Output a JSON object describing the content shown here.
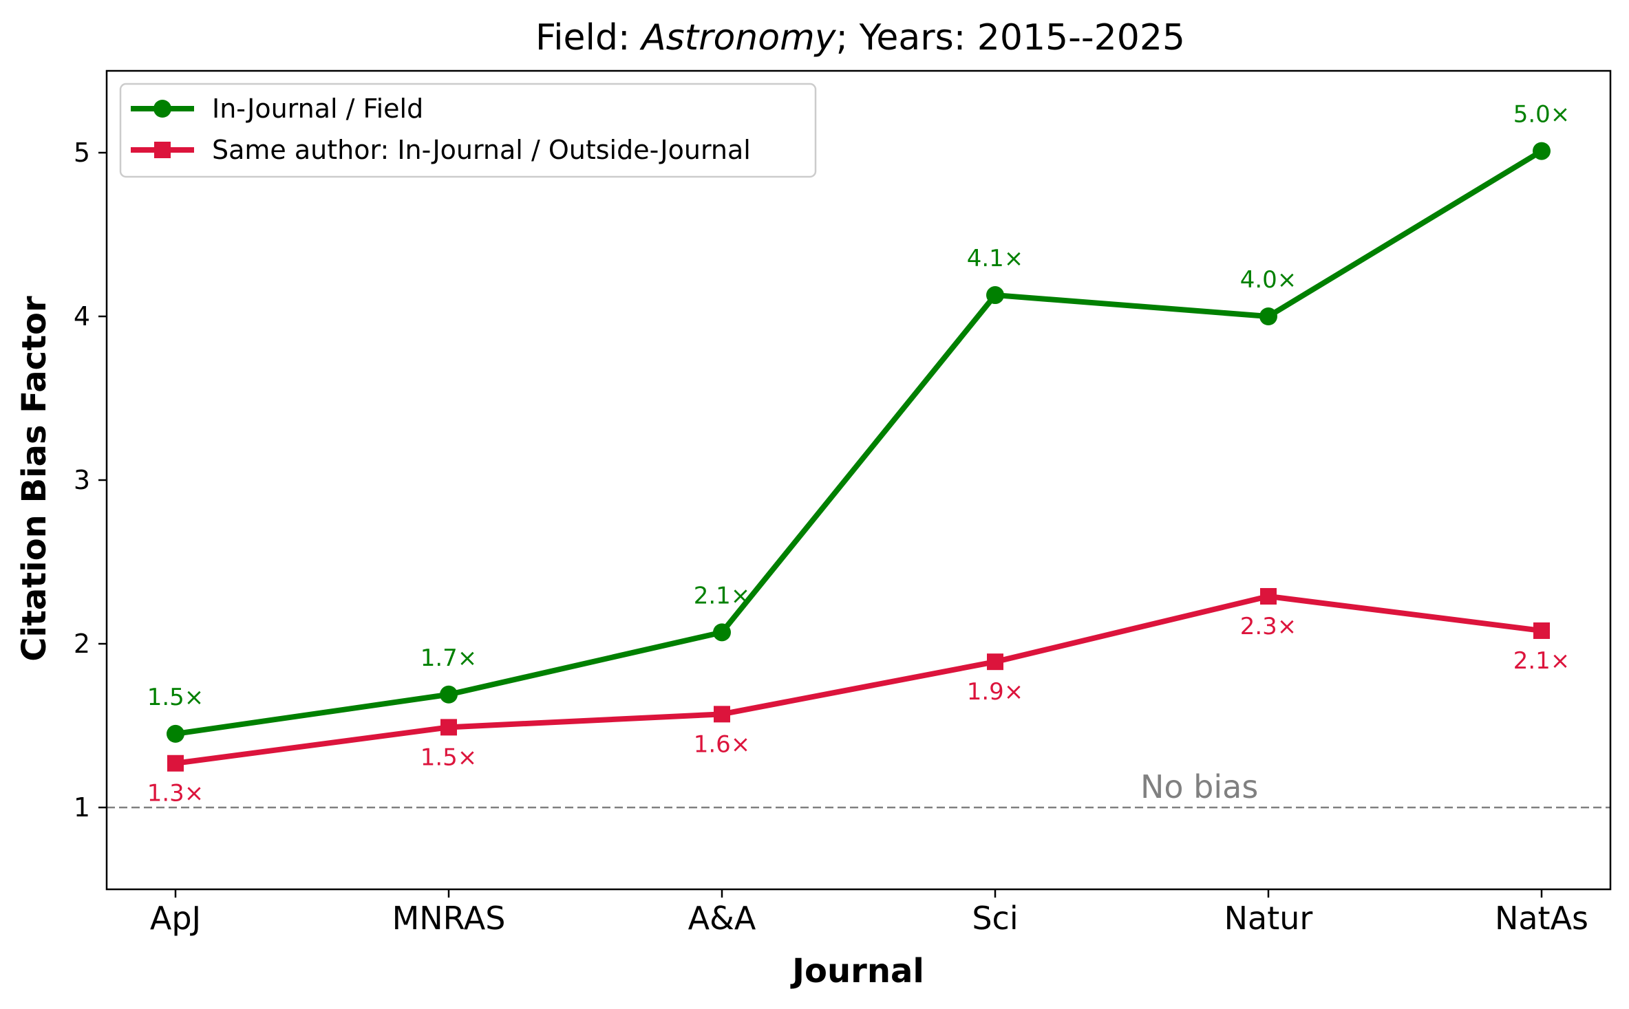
{
  "chart_data": {
    "type": "line",
    "title": {
      "prefix": "Field: ",
      "field": "Astronomy",
      "suffix": "; Years: 2015--2025"
    },
    "xlabel": "Journal",
    "ylabel": "Citation Bias Factor",
    "categories": [
      "ApJ",
      "MNRAS",
      "A&A",
      "Sci",
      "Natur",
      "NatAs"
    ],
    "ylim": [
      0.5,
      5.5
    ],
    "yticks": [
      1,
      2,
      3,
      4,
      5
    ],
    "grid": false,
    "legend_position": "upper-left",
    "series": [
      {
        "name": "In-Journal / Field",
        "color": "#008000",
        "marker": "circle",
        "values": [
          1.45,
          1.69,
          2.07,
          4.13,
          4.0,
          5.01
        ],
        "labels": [
          "1.5×",
          "1.7×",
          "2.1×",
          "4.1×",
          "4.0×",
          "5.0×"
        ],
        "label_side": "above"
      },
      {
        "name": "Same author: In-Journal / Outside-Journal",
        "color": "#DC143C",
        "marker": "square",
        "values": [
          1.27,
          1.49,
          1.57,
          1.89,
          2.29,
          2.08
        ],
        "labels": [
          "1.3×",
          "1.5×",
          "1.6×",
          "1.9×",
          "2.3×",
          "2.1×"
        ],
        "label_side": "below"
      }
    ],
    "reference_line": {
      "y": 1,
      "label": "No bias",
      "color": "#808080"
    }
  }
}
